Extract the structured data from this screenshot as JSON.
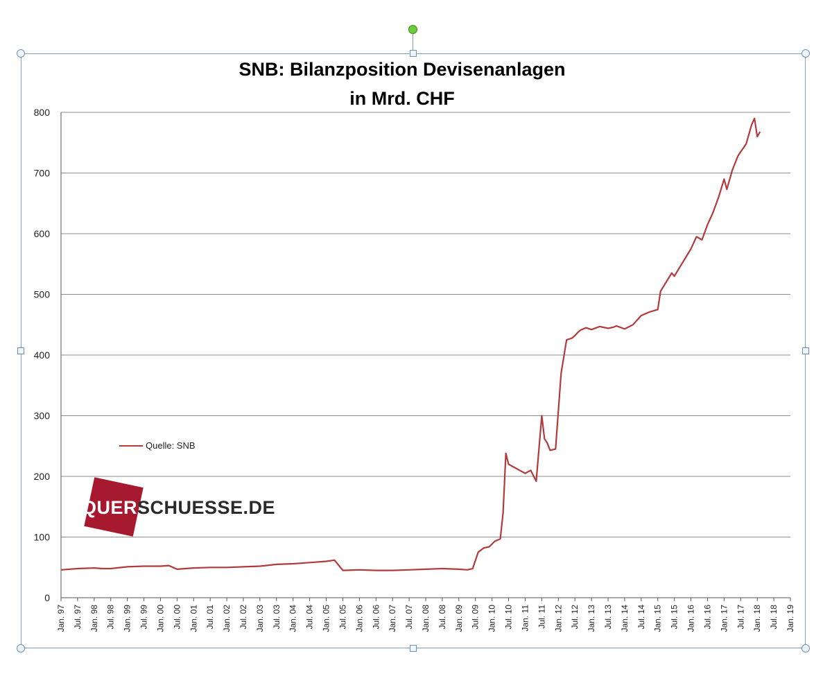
{
  "chart_data": {
    "type": "line",
    "title": "SNB: Bilanzposition Devisenanlagen",
    "subtitle": "in Mrd. CHF",
    "legend": {
      "label": "Quelle: SNB",
      "placement": "left-middle"
    },
    "watermark": "QUERSCHUESSE.DE",
    "series_color": "#b33a3a",
    "grid": true,
    "ylim": [
      0,
      800
    ],
    "y_ticks": [
      0,
      100,
      200,
      300,
      400,
      500,
      600,
      700,
      800
    ],
    "x_ticks": [
      "Jan. 97",
      "Jul. 97",
      "Jan. 98",
      "Jul. 98",
      "Jan. 99",
      "Jul. 99",
      "Jan. 00",
      "Jul. 00",
      "Jan. 01",
      "Jul. 01",
      "Jan. 02",
      "Jul. 02",
      "Jan. 03",
      "Jul. 03",
      "Jan. 04",
      "Jul. 04",
      "Jan. 05",
      "Jul. 05",
      "Jan. 06",
      "Jul. 06",
      "Jan. 07",
      "Jul. 07",
      "Jan. 08",
      "Jul. 08",
      "Jan. 09",
      "Jul. 09",
      "Jan. 10",
      "Jul. 10",
      "Jan. 11",
      "Jul. 11",
      "Jan. 12",
      "Jul. 12",
      "Jan. 13",
      "Jul. 13",
      "Jan. 14",
      "Jul. 14",
      "Jan. 15",
      "Jul. 15",
      "Jan. 16",
      "Jul. 16",
      "Jan. 17",
      "Jul. 17",
      "Jan. 18",
      "Jul. 18",
      "Jan. 19"
    ],
    "series": [
      {
        "name": "Quelle: SNB",
        "x": [
          "Jan. 97",
          "Jul. 97",
          "Jan. 98",
          "Apr. 98",
          "Jul. 98",
          "Jan. 99",
          "Jul. 99",
          "Jan. 00",
          "Apr. 00",
          "Jul. 00",
          "Jan. 01",
          "Jul. 01",
          "Jan. 02",
          "Jul. 02",
          "Jan. 03",
          "Jul. 03",
          "Jan. 04",
          "Jul. 04",
          "Jan. 05",
          "Apr. 05",
          "Jul. 05",
          "Jan. 06",
          "Jul. 06",
          "Jan. 07",
          "Jul. 07",
          "Jan. 08",
          "Jul. 08",
          "Jan. 09",
          "Apr. 09",
          "Jun. 09",
          "Aug. 09",
          "Oct. 09",
          "Dec. 09",
          "Feb. 10",
          "Apr. 10",
          "May 10",
          "Jun. 10",
          "Jul. 10",
          "Sep. 10",
          "Nov. 10",
          "Jan. 11",
          "Mar. 11",
          "May 11",
          "Jul. 11",
          "Aug. 11",
          "Sep. 11",
          "Oct. 11",
          "Dec. 11",
          "Feb. 12",
          "Apr. 12",
          "Jun. 12",
          "Jul. 12",
          "Aug. 12",
          "Sep. 12",
          "Nov. 12",
          "Jan. 13",
          "Apr. 13",
          "Jul. 13",
          "Sep. 13",
          "Oct. 13",
          "Jan. 14",
          "Apr. 14",
          "Jul. 14",
          "Oct. 14",
          "Jan. 15",
          "Feb. 15",
          "Apr. 15",
          "Jun. 15",
          "Jul. 15",
          "Sep. 15",
          "Nov. 15",
          "Jan. 16",
          "Mar. 16",
          "May 16",
          "Jul. 16",
          "Sep. 16",
          "Nov. 16",
          "Jan. 17",
          "Feb. 17",
          "Apr. 17",
          "Jun. 17",
          "Jul. 17",
          "Sep. 17",
          "Nov. 17",
          "Dec. 17",
          "Jan. 18",
          "Feb. 18"
        ],
        "y": [
          46,
          48,
          49,
          48,
          48,
          51,
          52,
          52,
          53,
          47,
          49,
          50,
          50,
          51,
          52,
          55,
          56,
          58,
          60,
          62,
          45,
          46,
          45,
          45,
          46,
          47,
          48,
          47,
          46,
          48,
          75,
          82,
          84,
          93,
          97,
          140,
          238,
          220,
          215,
          210,
          205,
          210,
          192,
          300,
          262,
          255,
          243,
          245,
          370,
          425,
          428,
          432,
          437,
          441,
          445,
          442,
          447,
          444,
          446,
          448,
          443,
          450,
          465,
          471,
          475,
          505,
          520,
          535,
          530,
          545,
          560,
          575,
          595,
          590,
          615,
          635,
          660,
          690,
          673,
          705,
          728,
          735,
          748,
          780,
          790,
          760,
          768
        ]
      }
    ]
  }
}
